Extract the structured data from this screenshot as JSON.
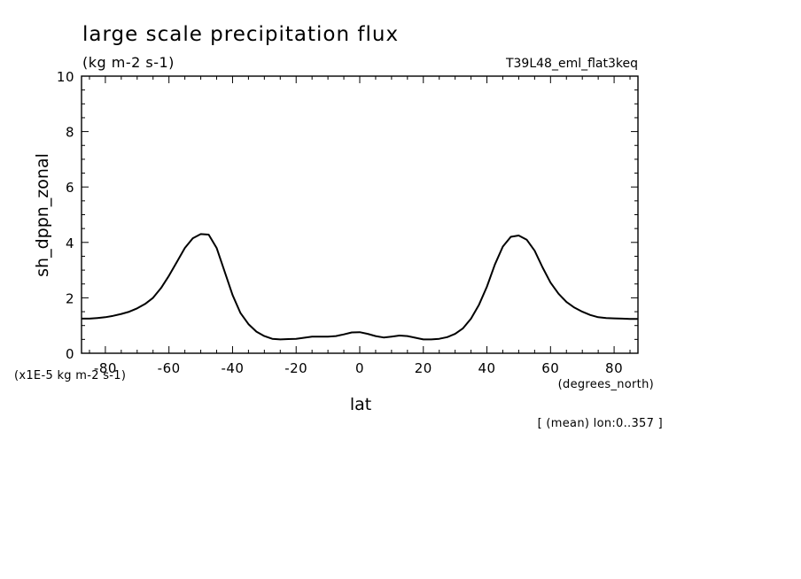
{
  "chart_data": {
    "type": "line",
    "title": "large scale precipitation flux",
    "units": "(kg m-2 s-1)",
    "run_label": "T39L48_eml_flat3keq",
    "ylabel": "sh_dppn_zonal",
    "xlabel": "lat",
    "x_units": "(degrees_north)",
    "scale_note": "(x1E-5 kg m-2 s-1)",
    "footnote": "[ (mean) lon:0..357 ]",
    "xlim": [
      -87.5,
      87.5
    ],
    "ylim": [
      0,
      10
    ],
    "x_ticks": [
      -80,
      -60,
      -40,
      -20,
      0,
      20,
      40,
      60,
      80
    ],
    "x_tick_labels": [
      "-80",
      "-60",
      "-40",
      "-20",
      "0",
      "20",
      "40",
      "60",
      "80"
    ],
    "y_ticks": [
      0,
      2,
      4,
      6,
      8,
      10
    ],
    "y_tick_labels": [
      "0",
      "2",
      "4",
      "6",
      "8",
      "10"
    ],
    "series": [
      {
        "name": "sh_dppn_zonal",
        "x": [
          -87.5,
          -85,
          -82.5,
          -80,
          -77.5,
          -75,
          -72.5,
          -70,
          -67.5,
          -65,
          -62.5,
          -60,
          -57.5,
          -55,
          -52.5,
          -50,
          -47.5,
          -45,
          -42.5,
          -40,
          -37.5,
          -35,
          -32.5,
          -30,
          -27.5,
          -25,
          -22.5,
          -20,
          -17.5,
          -15,
          -12.5,
          -10,
          -7.5,
          -5,
          -2.5,
          0,
          2.5,
          5,
          7.5,
          10,
          12.5,
          15,
          17.5,
          20,
          22.5,
          25,
          27.5,
          30,
          32.5,
          35,
          37.5,
          40,
          42.5,
          45,
          47.5,
          50,
          52.5,
          55,
          57.5,
          60,
          62.5,
          65,
          67.5,
          70,
          72.5,
          75,
          77.5,
          80,
          82.5,
          85,
          87.5
        ],
        "values": [
          1.25,
          1.25,
          1.27,
          1.3,
          1.35,
          1.42,
          1.5,
          1.62,
          1.78,
          2.0,
          2.35,
          2.8,
          3.3,
          3.8,
          4.15,
          4.3,
          4.28,
          3.8,
          2.95,
          2.1,
          1.45,
          1.05,
          0.78,
          0.62,
          0.52,
          0.5,
          0.51,
          0.52,
          0.56,
          0.6,
          0.6,
          0.6,
          0.62,
          0.68,
          0.75,
          0.76,
          0.7,
          0.62,
          0.57,
          0.6,
          0.64,
          0.62,
          0.56,
          0.5,
          0.5,
          0.52,
          0.58,
          0.7,
          0.9,
          1.25,
          1.75,
          2.4,
          3.2,
          3.85,
          4.2,
          4.25,
          4.1,
          3.7,
          3.1,
          2.55,
          2.15,
          1.85,
          1.65,
          1.5,
          1.38,
          1.3,
          1.27,
          1.26,
          1.25,
          1.24,
          1.24
        ]
      }
    ]
  }
}
